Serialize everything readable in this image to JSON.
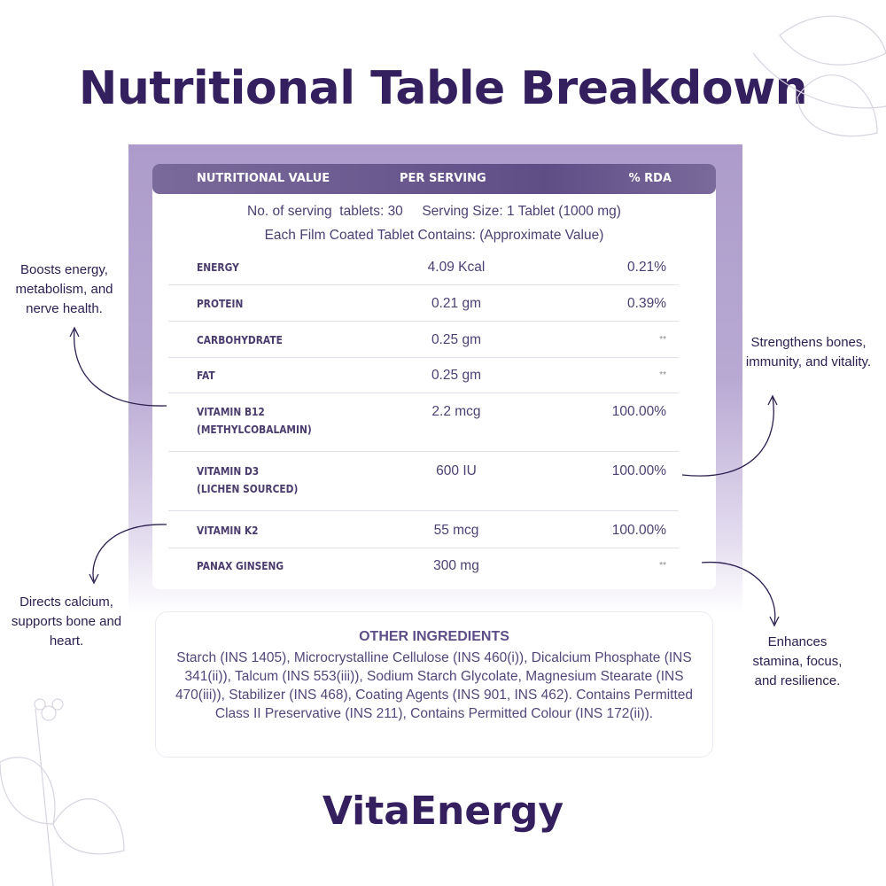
{
  "title": "Nutritional Table Breakdown",
  "table": {
    "headers": [
      "NUTRITIONAL VALUE",
      "PER SERVING",
      "% RDA"
    ],
    "serving_line": "No. of serving  tablets: 30     Serving Size: 1 Tablet (1000 mg)",
    "contains_line": "Each Film Coated Tablet Contains: (Approximate Value)",
    "rows": [
      {
        "name": "ENERGY",
        "sub": "",
        "value": "4.09 Kcal",
        "rda": "0.21%"
      },
      {
        "name": "PROTEIN",
        "sub": "",
        "value": "0.21 gm",
        "rda": "0.39%"
      },
      {
        "name": "CARBOHYDRATE",
        "sub": "",
        "value": "0.25 gm",
        "rda": "**"
      },
      {
        "name": "FAT",
        "sub": "",
        "value": "0.25 gm",
        "rda": "**"
      },
      {
        "name": "VITAMIN B12",
        "sub": "(METHYLCOBALAMIN)",
        "value": "2.2 mcg",
        "rda": "100.00%"
      },
      {
        "name": "VITAMIN D3",
        "sub": "(LICHEN SOURCED)",
        "value": "600 IU",
        "rda": "100.00%"
      },
      {
        "name": "VITAMIN K2",
        "sub": "",
        "value": "55 mcg",
        "rda": "100.00%"
      },
      {
        "name": "PANAX GINSENG",
        "sub": "",
        "value": "300 mg",
        "rda": "**"
      }
    ]
  },
  "other_ingredients": {
    "title": "OTHER INGREDIENTS",
    "text": "Starch (INS 1405), Microcrystalline Cellulose (INS 460(i)),  Dicalcium Phosphate (INS 341(ii)),  Talcum (INS 553(iii)),  Sodium Starch Glycolate, Magnesium Stearate (INS 470(iii)),  Stabilizer (INS 468),  Coating Agents (INS 901, INS 462). Contains Permitted Class II Preservative (INS 211), Contains Permitted Colour (INS 172(ii))."
  },
  "notes": {
    "b12": "Boosts energy, metabolism, and nerve health.",
    "d3": "Strengthens bones, immunity, and vitality.",
    "k2": "Directs calcium, supports bone and heart.",
    "ginseng": "Enhances stamina, focus, and resilience."
  },
  "brand": "VitaEnergy",
  "colors": {
    "primary": "#34205e",
    "panel": "#b0a0cc",
    "header": "#65558b"
  }
}
